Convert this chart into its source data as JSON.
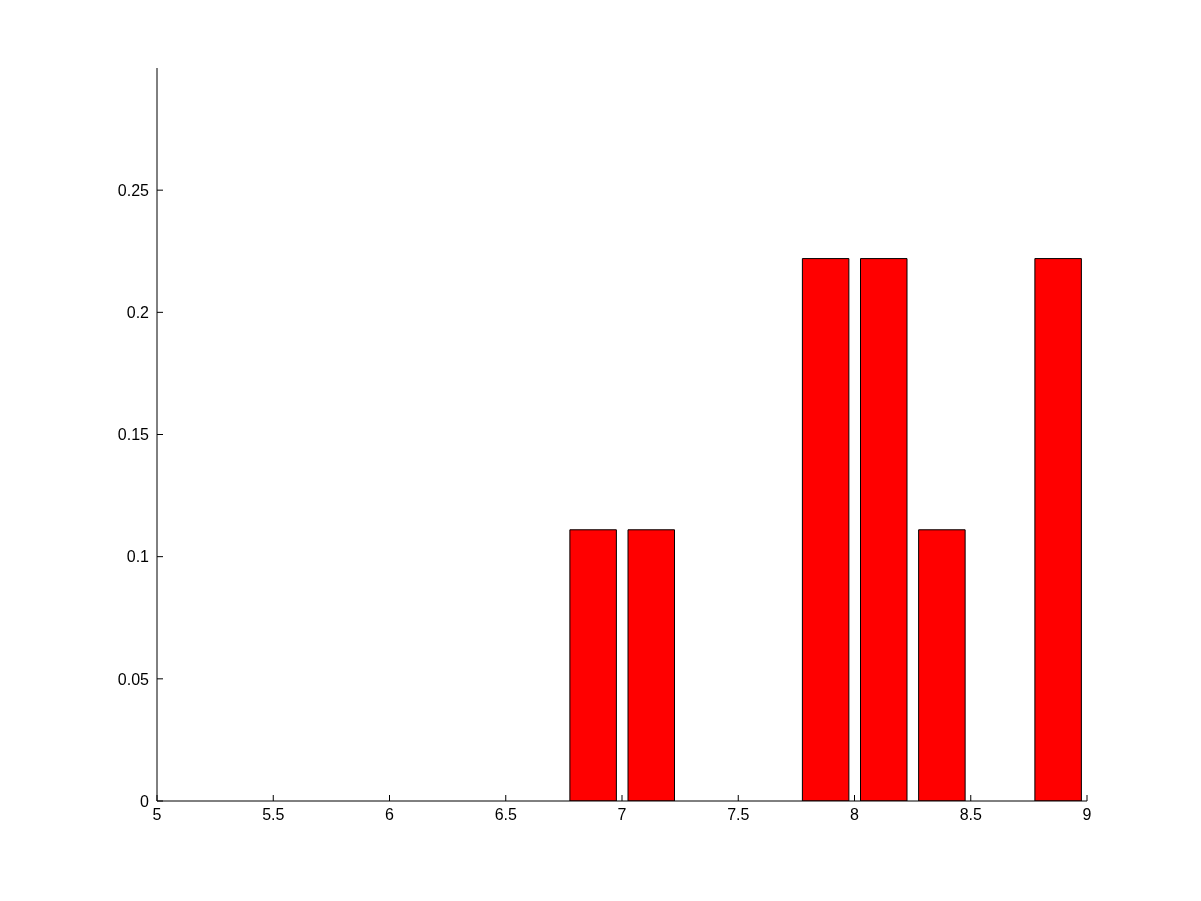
{
  "chart_data": {
    "type": "bar",
    "x": [
      6.875,
      7.125,
      7.875,
      8.125,
      8.375,
      8.875
    ],
    "values": [
      0.111,
      0.111,
      0.222,
      0.222,
      0.111,
      0.222
    ],
    "color": "#ff0000",
    "xlim": [
      5,
      9
    ],
    "xticks": [
      5,
      5.5,
      6,
      6.5,
      7,
      7.5,
      8,
      8.5,
      9
    ],
    "ylim": [
      0,
      0.3
    ],
    "yticks": [
      0,
      0.05,
      0.1,
      0.15,
      0.2,
      0.25
    ],
    "grid": false
  }
}
